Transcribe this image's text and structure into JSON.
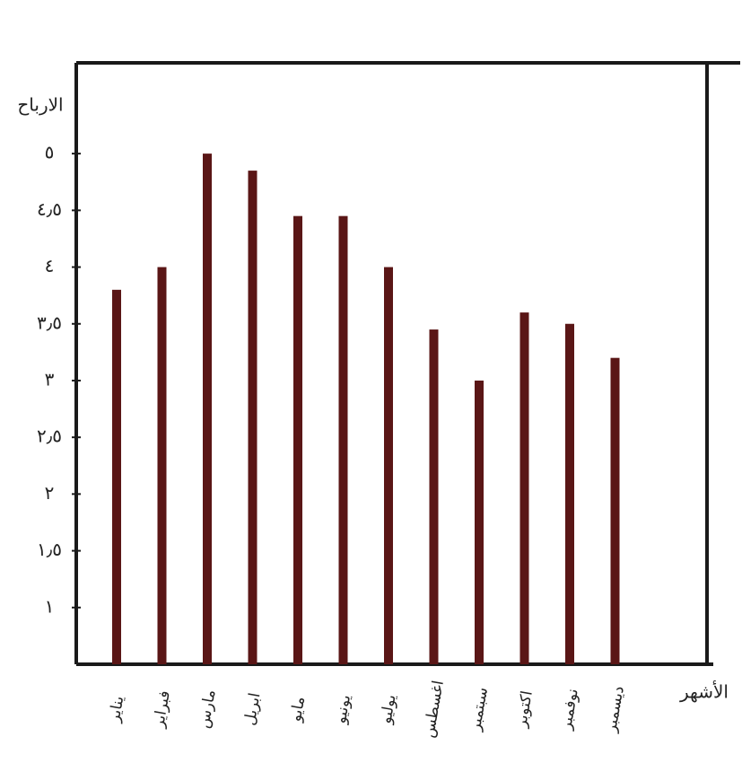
{
  "chart_data": {
    "type": "bar",
    "y_label": "الارباح",
    "x_label": "الأشهر",
    "categories": [
      "يناير",
      "فبراير",
      "مارس",
      "ابريل",
      "مايو",
      "يونيو",
      "يوليو",
      "اغسطس",
      "سبتمبر",
      "اكتوبر",
      "نوفمبر",
      "ديسمبر"
    ],
    "values": [
      3.8,
      4.0,
      5.0,
      4.85,
      4.45,
      4.45,
      4.0,
      3.45,
      3.0,
      3.6,
      3.5,
      3.2
    ],
    "color": "#5a1616",
    "ylim": [
      0.5,
      5.8
    ],
    "yticks": [
      {
        "value": 1,
        "label": "١"
      },
      {
        "value": 1.5,
        "label": "١٫٥"
      },
      {
        "value": 2,
        "label": "٢"
      },
      {
        "value": 2.5,
        "label": "٢٫٥"
      },
      {
        "value": 3,
        "label": "٣"
      },
      {
        "value": 3.5,
        "label": "٣٫٥"
      },
      {
        "value": 4,
        "label": "٤"
      },
      {
        "value": 4.5,
        "label": "٤٫٥"
      },
      {
        "value": 5,
        "label": "٥"
      }
    ],
    "grid": false
  }
}
